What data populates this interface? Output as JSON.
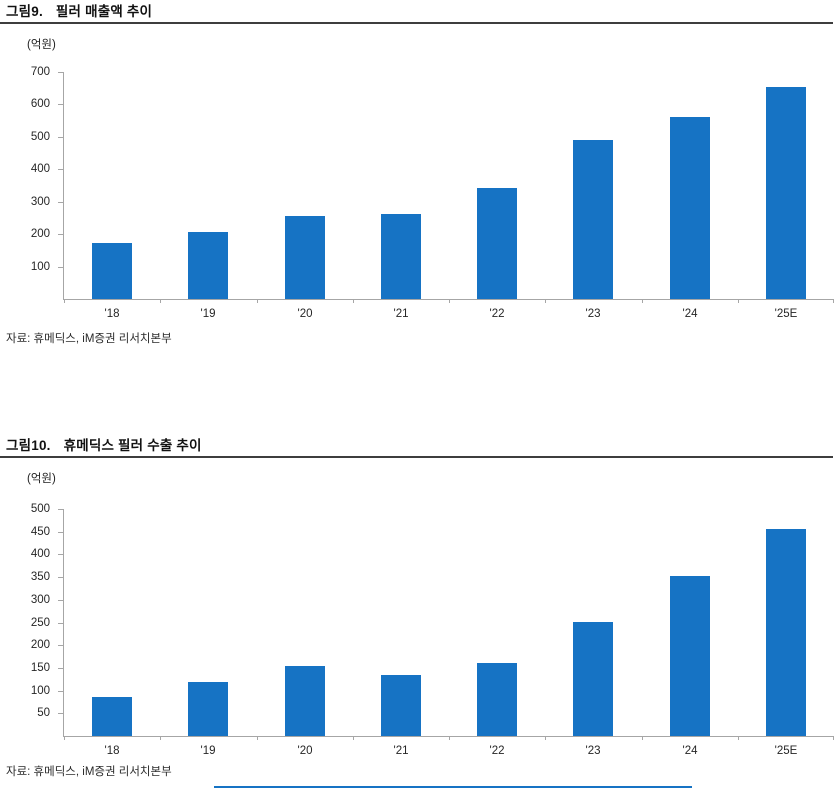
{
  "page": {
    "bar_color": "#1673C4",
    "axis_color": "#A6A6A6",
    "footer_rule_color": "#1673C4"
  },
  "figures": [
    {
      "title_no": "그림9.",
      "title": "필러 매출액 추이",
      "unit": "(억원)",
      "source": "자료: 휴메딕스, iM증권 리서치본부"
    },
    {
      "title_no": "그림10.",
      "title": "휴메딕스 필러 수출 추이",
      "unit": "(억원)",
      "source": "자료: 휴메딕스, iM증권 리서치본부"
    }
  ],
  "chart_data": [
    {
      "type": "bar",
      "title": "그림9. 필러 매출액 추이",
      "categories": [
        "'18",
        "'19",
        "'20",
        "'21",
        "'22",
        "'23",
        "'24",
        "'25E"
      ],
      "values": [
        172,
        207,
        255,
        261,
        342,
        490,
        560,
        655
      ],
      "xlabel": "",
      "ylabel": "(억원)",
      "ylim": [
        0,
        700
      ],
      "ytick_step": 100,
      "grid": false,
      "legend": "none",
      "bar_color": "#1673C4",
      "source": "자료: 휴메딕스, iM증권 리서치본부"
    },
    {
      "type": "bar",
      "title": "그림10. 휴메딕스 필러 수출 추이",
      "categories": [
        "'18",
        "'19",
        "'20",
        "'21",
        "'22",
        "'23",
        "'24",
        "'25E"
      ],
      "values": [
        86,
        119,
        155,
        134,
        161,
        252,
        353,
        455
      ],
      "xlabel": "",
      "ylabel": "(억원)",
      "ylim": [
        0,
        500
      ],
      "ytick_step": 50,
      "grid": false,
      "legend": "none",
      "bar_color": "#1673C4",
      "source": "자료: 휴메딕스, iM증권 리서치본부"
    }
  ]
}
